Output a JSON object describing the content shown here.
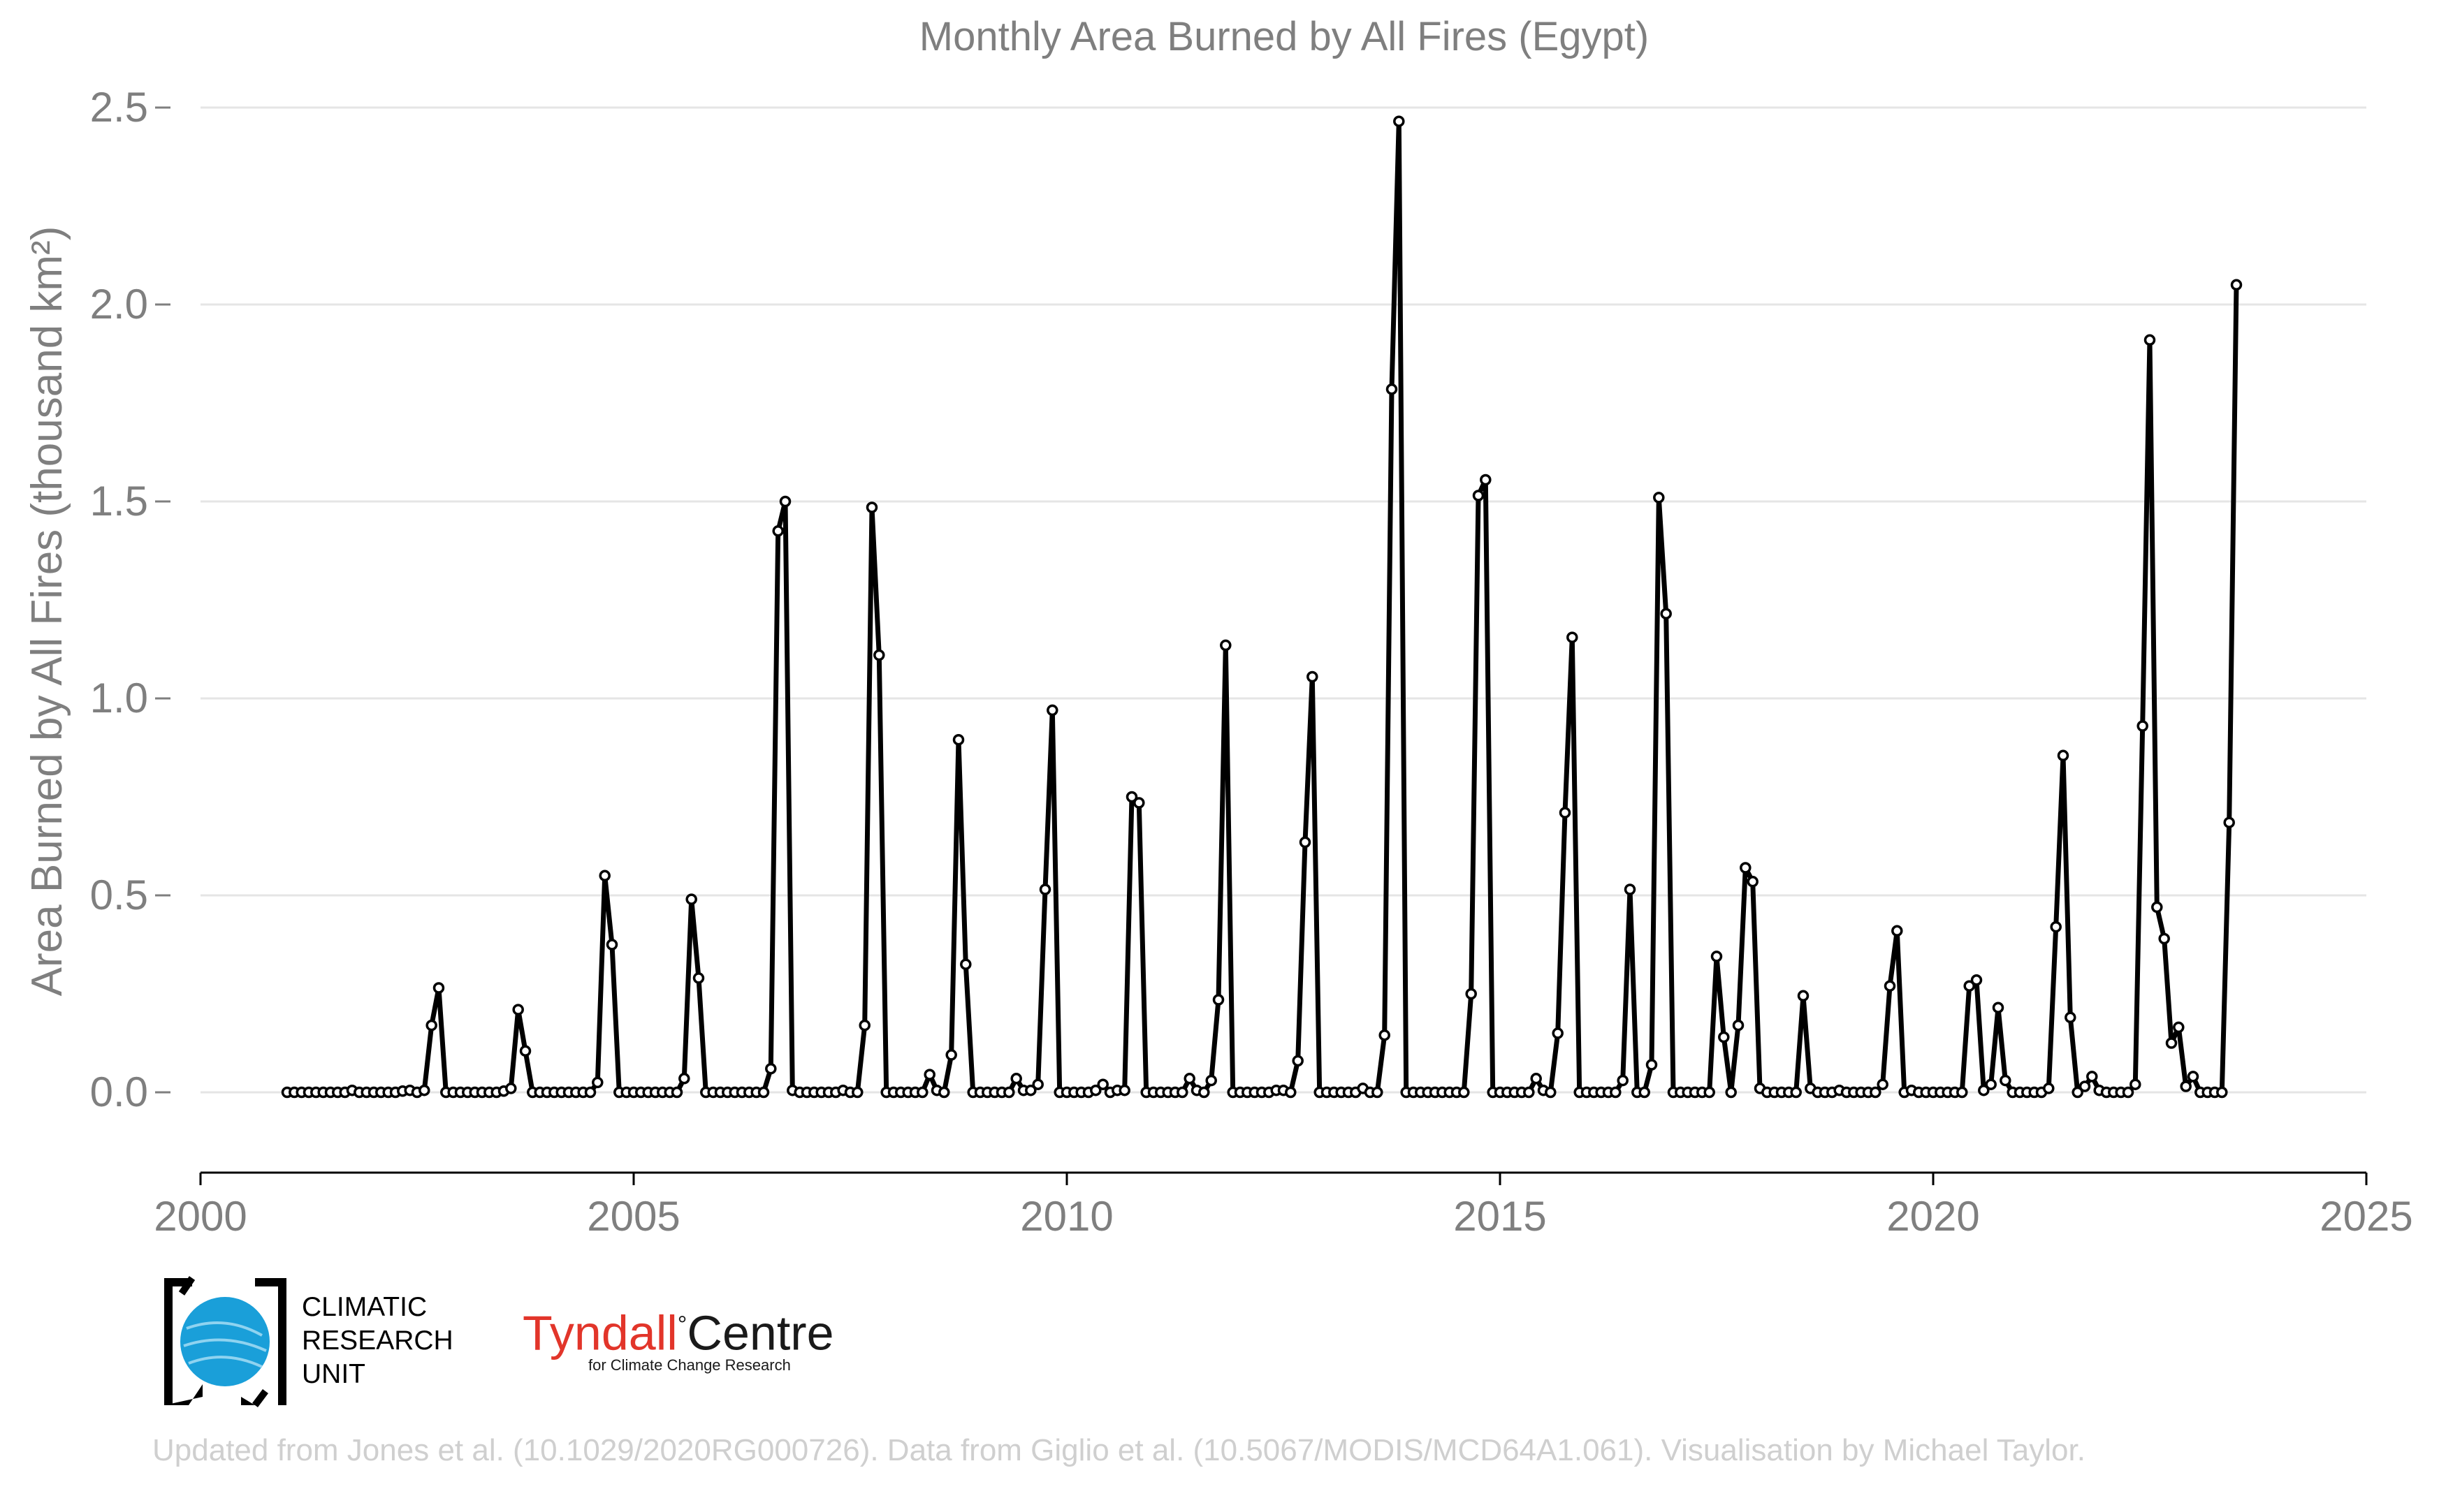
{
  "chart_data": {
    "type": "line",
    "title": "Monthly Area Burned by All Fires (Egypt)",
    "ylabel": "Area Burned by All Fires (thousand km²)",
    "xlabel": "",
    "xlim": [
      2000,
      2025
    ],
    "ylim": [
      -0.2,
      2.5
    ],
    "xticks": [
      "2000",
      "2005",
      "2010",
      "2015",
      "2020",
      "2025"
    ],
    "yticks": [
      "0.0",
      "0.5",
      "1.0",
      "1.5",
      "2.0",
      "2.5"
    ],
    "grid": "horizontal",
    "legend": "none",
    "colors": {
      "line": "#000000",
      "marker_fill": "#ffffff",
      "text": "#7f7f7f",
      "grid": "#e5e5e5"
    },
    "series": [
      {
        "start": "2001-01",
        "values": [
          0,
          0,
          0,
          0,
          0,
          0,
          0,
          0,
          0,
          0.005,
          0,
          0,
          0,
          0,
          0,
          0,
          0.003,
          0.005,
          0,
          0.005,
          0.17,
          0.265,
          0,
          0,
          0,
          0,
          0,
          0,
          0,
          0,
          0.003,
          0.01,
          0.21,
          0.105,
          0,
          0,
          0,
          0,
          0,
          0,
          0,
          0,
          0,
          0.025,
          0.55,
          0.375,
          0,
          0,
          0,
          0,
          0,
          0,
          0,
          0,
          0,
          0.035,
          0.49,
          0.29,
          0,
          0,
          0,
          0,
          0,
          0,
          0,
          0,
          0,
          0.06,
          1.425,
          1.5,
          0.005,
          0,
          0,
          0,
          0,
          0,
          0,
          0.005,
          0,
          0,
          0.17,
          1.485,
          1.11,
          0,
          0,
          0,
          0,
          0,
          0,
          0.045,
          0.005,
          0,
          0.095,
          0.895,
          0.325,
          0,
          0,
          0,
          0,
          0,
          0,
          0.035,
          0.005,
          0.005,
          0.02,
          0.515,
          0.97,
          0,
          0,
          0,
          0,
          0,
          0.005,
          0.02,
          0,
          0.005,
          0.005,
          0.75,
          0.735,
          0,
          0,
          0,
          0,
          0,
          0,
          0.035,
          0.005,
          0,
          0.03,
          0.235,
          1.135,
          0,
          0,
          0,
          0,
          0,
          0,
          0.005,
          0.005,
          0,
          0.08,
          0.635,
          1.055,
          0,
          0,
          0,
          0,
          0,
          0,
          0.01,
          0,
          0,
          0.145,
          1.785,
          2.465,
          0,
          0,
          0,
          0,
          0,
          0,
          0,
          0,
          0,
          0.25,
          1.515,
          1.555,
          0,
          0,
          0,
          0,
          0,
          0,
          0.035,
          0.005,
          0,
          0.15,
          0.71,
          1.155,
          0,
          0,
          0,
          0,
          0,
          0,
          0.03,
          0.515,
          0,
          0,
          0.07,
          1.51,
          1.215,
          0,
          0,
          0,
          0,
          0,
          0,
          0.345,
          0.14,
          0,
          0.17,
          0.57,
          0.535,
          0.01,
          0,
          0,
          0,
          0,
          0,
          0.245,
          0.01,
          0,
          0,
          0,
          0.005,
          0,
          0,
          0,
          0,
          0,
          0.02,
          0.27,
          0.41,
          0,
          0.005,
          0,
          0,
          0,
          0,
          0,
          0,
          0,
          0.27,
          0.285,
          0.005,
          0.02,
          0.215,
          0.03,
          0,
          0,
          0,
          0,
          0,
          0.01,
          0.42,
          0.855,
          0.19,
          0,
          0.015,
          0.04,
          0.005,
          0,
          0,
          0,
          0,
          0.02,
          0.93,
          1.91,
          0.47,
          0.39,
          0.125,
          0.165,
          0.015,
          0.04,
          0,
          0,
          0,
          0,
          0.685,
          2.05
        ]
      }
    ]
  },
  "logos": {
    "cru_lines": [
      "CLIMATIC",
      "RESEARCH",
      "UNIT"
    ],
    "tyndall_part1": "Tyndall",
    "tyndall_degree": "°",
    "tyndall_part2": "Centre",
    "tyndall_sub": "for Climate Change Research"
  },
  "credit": "Updated from Jones et al. (10.1029/2020RG000726). Data from Giglio et al. (10.5067/MODIS/MCD64A1.061). Visualisation by Michael Taylor."
}
